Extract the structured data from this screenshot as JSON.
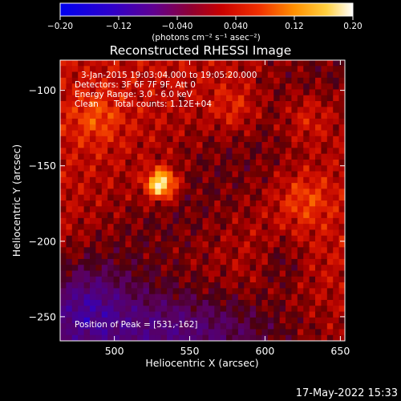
{
  "chart_data": {
    "type": "heatmap",
    "title": "Reconstructed RHESSI Image",
    "xlabel": "Heliocentric X (arcsec)",
    "ylabel": "Heliocentric Y (arcsec)",
    "xlim": [
      464,
      653
    ],
    "ylim": [
      -266,
      -80
    ],
    "x_ticks": [
      500,
      550,
      600,
      650
    ],
    "y_ticks": [
      -100,
      -150,
      -200,
      -250
    ],
    "x_tick_labels": [
      "500",
      "550",
      "600",
      "650"
    ],
    "y_tick_labels": [
      "−100",
      "−150",
      "−200",
      "−250"
    ],
    "colorbar": {
      "range": [
        -0.2,
        0.2
      ],
      "ticks": [
        -0.2,
        -0.12,
        -0.04,
        0.04,
        0.12,
        0.2
      ],
      "tick_labels": [
        "−0.20",
        "−0.12",
        "−0.040",
        "0.040",
        "0.12",
        "0.20"
      ],
      "unit_label": "(photons cm⁻² s⁻¹ asec⁻²)",
      "colormap": "blue-purple-red-yellow-white"
    },
    "annotations": {
      "time_range": "3-Jan-2015 19:03:04.000 to 19:05:20.000",
      "detectors": "Detectors: 3F 6F 7F 9F, Att 0",
      "energy_range": "Energy Range: 3.0 - 6.0 keV",
      "algorithm": "Clean",
      "total_counts": "Total counts: 1.12E+04",
      "position_of_peak": "Position of Peak = [531,-162]"
    },
    "peak": {
      "x": 531,
      "y": -162,
      "value": 0.2
    },
    "secondary_sources": [
      {
        "x": 626,
        "y": -172
      },
      {
        "x": 580,
        "y": -112
      },
      {
        "x": 628,
        "y": -118
      },
      {
        "x": 488,
        "y": -118
      }
    ]
  },
  "timestamp": "17-May-2022 15:33"
}
